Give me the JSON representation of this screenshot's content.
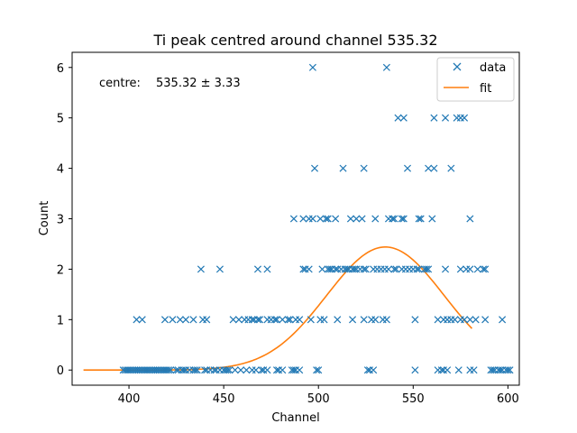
{
  "chart_data": {
    "type": "scatter",
    "title": "Ti peak centred around channel 535.32",
    "xlabel": "Channel",
    "ylabel": "Count",
    "xlim": [
      370,
      606
    ],
    "ylim": [
      -0.3,
      6.3
    ],
    "xticks": [
      400,
      450,
      500,
      550,
      600
    ],
    "yticks": [
      0,
      1,
      2,
      3,
      4,
      5,
      6
    ],
    "grid": false,
    "legend": {
      "placement": "top-right",
      "entries": [
        "data",
        "fit"
      ]
    },
    "annotation": {
      "label": "centre:",
      "value": "535.32 ± 3.33"
    },
    "colors": {
      "data": "#1f77b4",
      "fit": "#ff7f0e"
    },
    "series": [
      {
        "name": "data",
        "type": "scatter",
        "marker": "x",
        "points": [
          [
            397,
            0
          ],
          [
            398,
            0
          ],
          [
            399,
            0
          ],
          [
            400,
            0
          ],
          [
            401,
            0
          ],
          [
            402,
            0
          ],
          [
            403,
            0
          ],
          [
            404,
            0
          ],
          [
            405,
            0
          ],
          [
            406,
            0
          ],
          [
            407,
            0
          ],
          [
            408,
            0
          ],
          [
            409,
            0
          ],
          [
            410,
            0
          ],
          [
            411,
            0
          ],
          [
            412,
            0
          ],
          [
            413,
            0
          ],
          [
            414,
            0
          ],
          [
            415,
            0
          ],
          [
            416,
            0
          ],
          [
            417,
            0
          ],
          [
            418,
            0
          ],
          [
            419,
            0
          ],
          [
            420,
            0
          ],
          [
            421,
            0
          ],
          [
            422,
            0
          ],
          [
            425,
            0
          ],
          [
            426,
            0
          ],
          [
            428,
            0
          ],
          [
            429,
            0
          ],
          [
            430,
            0
          ],
          [
            432,
            0
          ],
          [
            434,
            0
          ],
          [
            435,
            0
          ],
          [
            436,
            0
          ],
          [
            440,
            0
          ],
          [
            441,
            0
          ],
          [
            443,
            0
          ],
          [
            445,
            0
          ],
          [
            446,
            0
          ],
          [
            448,
            0
          ],
          [
            450,
            0
          ],
          [
            451,
            0
          ],
          [
            452,
            0
          ],
          [
            453,
            0
          ],
          [
            456,
            0
          ],
          [
            459,
            0
          ],
          [
            462,
            0
          ],
          [
            465,
            0
          ],
          [
            467,
            0
          ],
          [
            470,
            0
          ],
          [
            471,
            0
          ],
          [
            473,
            0
          ],
          [
            478,
            0
          ],
          [
            479,
            0
          ],
          [
            481,
            0
          ],
          [
            486,
            0
          ],
          [
            487,
            0
          ],
          [
            488,
            0
          ],
          [
            490,
            0
          ],
          [
            499,
            0
          ],
          [
            500,
            0
          ],
          [
            526,
            0
          ],
          [
            527,
            0
          ],
          [
            529,
            0
          ],
          [
            551,
            0
          ],
          [
            563,
            0
          ],
          [
            565,
            0
          ],
          [
            566,
            0
          ],
          [
            568,
            0
          ],
          [
            574,
            0
          ],
          [
            580,
            0
          ],
          [
            582,
            0
          ],
          [
            591,
            0
          ],
          [
            592,
            0
          ],
          [
            593,
            0
          ],
          [
            595,
            0
          ],
          [
            596,
            0
          ],
          [
            597,
            0
          ],
          [
            599,
            0
          ],
          [
            600,
            0
          ],
          [
            601,
            0
          ],
          [
            404,
            1
          ],
          [
            407,
            1
          ],
          [
            419,
            1
          ],
          [
            423,
            1
          ],
          [
            427,
            1
          ],
          [
            430,
            1
          ],
          [
            434,
            1
          ],
          [
            439,
            1
          ],
          [
            441,
            1
          ],
          [
            455,
            1
          ],
          [
            458,
            1
          ],
          [
            461,
            1
          ],
          [
            463,
            1
          ],
          [
            465,
            1
          ],
          [
            466,
            1
          ],
          [
            468,
            1
          ],
          [
            469,
            1
          ],
          [
            473,
            1
          ],
          [
            475,
            1
          ],
          [
            477,
            1
          ],
          [
            478,
            1
          ],
          [
            481,
            1
          ],
          [
            484,
            1
          ],
          [
            485,
            1
          ],
          [
            488,
            1
          ],
          [
            490,
            1
          ],
          [
            496,
            1
          ],
          [
            501,
            1
          ],
          [
            503,
            1
          ],
          [
            510,
            1
          ],
          [
            518,
            1
          ],
          [
            524,
            1
          ],
          [
            528,
            1
          ],
          [
            530,
            1
          ],
          [
            534,
            1
          ],
          [
            536,
            1
          ],
          [
            551,
            1
          ],
          [
            563,
            1
          ],
          [
            566,
            1
          ],
          [
            568,
            1
          ],
          [
            570,
            1
          ],
          [
            572,
            1
          ],
          [
            575,
            1
          ],
          [
            577,
            1
          ],
          [
            580,
            1
          ],
          [
            583,
            1
          ],
          [
            588,
            1
          ],
          [
            597,
            1
          ],
          [
            438,
            2
          ],
          [
            448,
            2
          ],
          [
            468,
            2
          ],
          [
            473,
            2
          ],
          [
            492,
            2
          ],
          [
            493,
            2
          ],
          [
            495,
            2
          ],
          [
            502,
            2
          ],
          [
            505,
            2
          ],
          [
            506,
            2
          ],
          [
            507,
            2
          ],
          [
            509,
            2
          ],
          [
            510,
            2
          ],
          [
            512,
            2
          ],
          [
            514,
            2
          ],
          [
            515,
            2
          ],
          [
            516,
            2
          ],
          [
            518,
            2
          ],
          [
            519,
            2
          ],
          [
            520,
            2
          ],
          [
            522,
            2
          ],
          [
            524,
            2
          ],
          [
            525,
            2
          ],
          [
            529,
            2
          ],
          [
            531,
            2
          ],
          [
            533,
            2
          ],
          [
            535,
            2
          ],
          [
            537,
            2
          ],
          [
            540,
            2
          ],
          [
            541,
            2
          ],
          [
            544,
            2
          ],
          [
            546,
            2
          ],
          [
            548,
            2
          ],
          [
            550,
            2
          ],
          [
            552,
            2
          ],
          [
            553,
            2
          ],
          [
            556,
            2
          ],
          [
            557,
            2
          ],
          [
            558,
            2
          ],
          [
            567,
            2
          ],
          [
            575,
            2
          ],
          [
            578,
            2
          ],
          [
            580,
            2
          ],
          [
            584,
            2
          ],
          [
            587,
            2
          ],
          [
            588,
            2
          ],
          [
            487,
            3
          ],
          [
            492,
            3
          ],
          [
            495,
            3
          ],
          [
            497,
            3
          ],
          [
            501,
            3
          ],
          [
            504,
            3
          ],
          [
            505,
            3
          ],
          [
            509,
            3
          ],
          [
            517,
            3
          ],
          [
            520,
            3
          ],
          [
            523,
            3
          ],
          [
            530,
            3
          ],
          [
            537,
            3
          ],
          [
            539,
            3
          ],
          [
            540,
            3
          ],
          [
            544,
            3
          ],
          [
            545,
            3
          ],
          [
            553,
            3
          ],
          [
            554,
            3
          ],
          [
            560,
            3
          ],
          [
            580,
            3
          ],
          [
            498,
            4
          ],
          [
            513,
            4
          ],
          [
            524,
            4
          ],
          [
            547,
            4
          ],
          [
            558,
            4
          ],
          [
            561,
            4
          ],
          [
            570,
            4
          ],
          [
            542,
            5
          ],
          [
            545,
            5
          ],
          [
            561,
            5
          ],
          [
            567,
            5
          ],
          [
            573,
            5
          ],
          [
            575,
            5
          ],
          [
            577,
            5
          ],
          [
            497,
            6
          ],
          [
            536,
            6
          ]
        ]
      },
      {
        "name": "fit",
        "type": "line",
        "model": "gaussian",
        "amplitude": 2.44,
        "centre": 535.32,
        "sigma": 31,
        "x_range": [
          376,
          581
        ]
      }
    ]
  }
}
